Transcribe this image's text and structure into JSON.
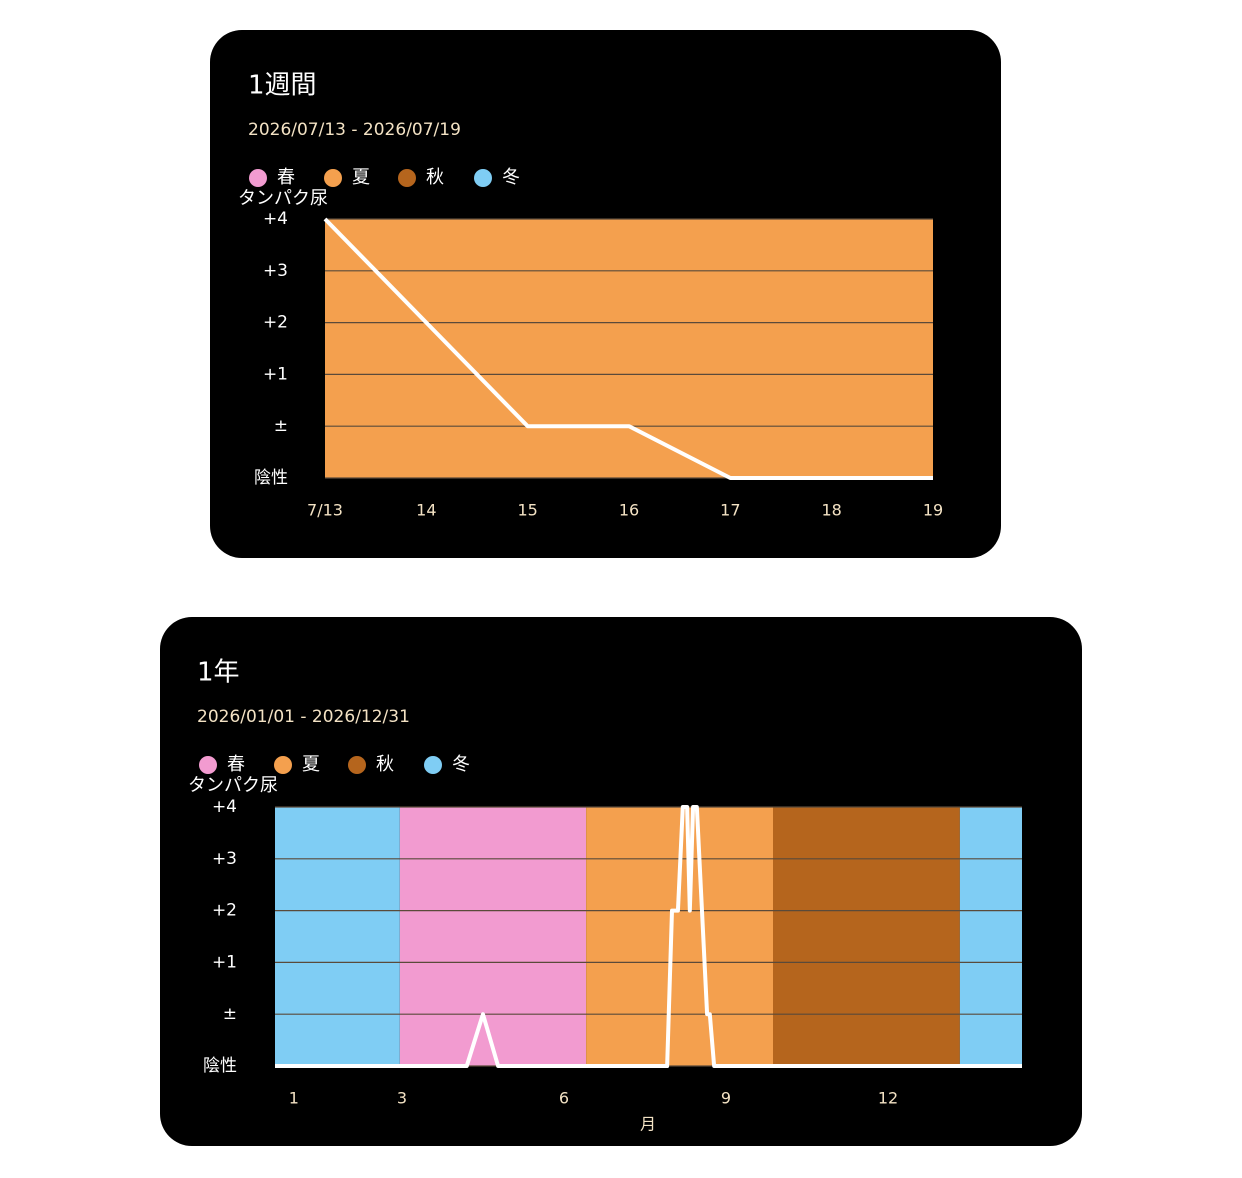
{
  "chart_data": [
    {
      "type": "line",
      "title": "1週間",
      "subtitle": "2026/07/13 - 2026/07/19",
      "y_label": "タンパク尿",
      "seasons": [
        {
          "name": "春",
          "color": "#f29bd0",
          "ranges": []
        },
        {
          "name": "夏",
          "color": "#f4a04e",
          "ranges": [
            [
              13,
              19
            ]
          ]
        },
        {
          "name": "秋",
          "color": "#b5651d",
          "ranges": []
        },
        {
          "name": "冬",
          "color": "#7fcdf4",
          "ranges": []
        }
      ],
      "x": [
        13,
        14,
        15,
        16,
        17,
        18,
        19
      ],
      "values": [
        5,
        3,
        1,
        1,
        0,
        0,
        0
      ],
      "line_color": "#ffffff",
      "xlim": [
        13,
        19
      ],
      "xticks": [
        {
          "value": 13,
          "label": "7/13"
        },
        14,
        15,
        16,
        17,
        18,
        19
      ],
      "ylim": [
        0,
        5
      ],
      "yticks": [
        {
          "value": 0,
          "label": "陰性"
        },
        {
          "value": 1,
          "label": "±"
        },
        {
          "value": 2,
          "label": "+1"
        },
        {
          "value": 3,
          "label": "+2"
        },
        {
          "value": 4,
          "label": "+3"
        },
        {
          "value": 5,
          "label": "+4"
        }
      ],
      "grid": true
    },
    {
      "type": "line",
      "title": "1年",
      "subtitle": "2026/01/01 - 2026/12/31",
      "y_label": "タンパク尿",
      "x_label": "月",
      "seasons": [
        {
          "name": "春",
          "color": "#f29bd0",
          "ranges": [
            [
              2.96,
              6.41
            ]
          ]
        },
        {
          "name": "夏",
          "color": "#f4a04e",
          "ranges": [
            [
              6.41,
              9.87
            ]
          ]
        },
        {
          "name": "秋",
          "color": "#b5651d",
          "ranges": [
            [
              9.87,
              13.33
            ]
          ]
        },
        {
          "name": "冬",
          "color": "#7fcdf4",
          "ranges": [
            [
              0.65,
              2.96
            ],
            [
              13.33,
              14.48
            ]
          ]
        }
      ],
      "x": [
        0.65,
        4.2,
        4.5,
        4.78,
        7.91,
        8.0,
        8.11,
        8.2,
        8.28,
        8.33,
        8.39,
        8.46,
        8.65,
        8.7,
        8.78,
        14.48
      ],
      "values": [
        0,
        0,
        1,
        0,
        0,
        3,
        3,
        5,
        5,
        3,
        5,
        5,
        1,
        1,
        0,
        0
      ],
      "line_color": "#ffffff",
      "xlim": [
        0.65,
        14.48
      ],
      "xticks": [
        1,
        3,
        6,
        9,
        12
      ],
      "ylim": [
        0,
        5
      ],
      "yticks": [
        {
          "value": 0,
          "label": "陰性"
        },
        {
          "value": 1,
          "label": "±"
        },
        {
          "value": 2,
          "label": "+1"
        },
        {
          "value": 3,
          "label": "+2"
        },
        {
          "value": 4,
          "label": "+3"
        },
        {
          "value": 5,
          "label": "+4"
        }
      ],
      "grid": true
    }
  ]
}
